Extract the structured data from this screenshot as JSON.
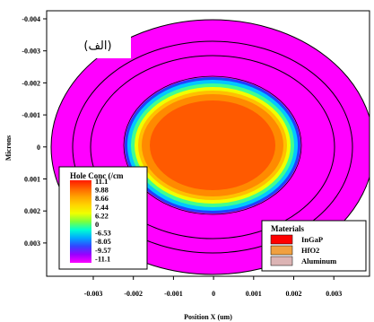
{
  "chart_data": {
    "type": "heatmap",
    "panel_label": "(الف)",
    "xlabel": "Position X (um)",
    "ylabel": "Microns",
    "x_ticks": [
      "-0.003",
      "-0.002",
      "-0.001",
      "0",
      "0.001",
      "0.002",
      "0.003"
    ],
    "y_ticks": [
      "-0.004",
      "-0.003",
      "-0.002",
      "-0.001",
      "0",
      "0.001",
      "0.002",
      "0.003"
    ],
    "colorbar": {
      "title": "Hole Conc (/cm",
      "levels": [
        "11.1",
        "9.88",
        "8.66",
        "7.44",
        "6.22",
        "0",
        "-6.53",
        "-8.05",
        "-9.57",
        "-11.1"
      ],
      "colors": [
        "#ff1a00",
        "#ff6400",
        "#ffa300",
        "#ffd400",
        "#f0ff00",
        "#7cff3c",
        "#00ffd2",
        "#00a8ff",
        "#3344ff",
        "#9a00ff",
        "#ff00ff"
      ]
    },
    "materials_legend": {
      "title": "Materials",
      "items": [
        {
          "name": "InGaP",
          "color": "#ff0000"
        },
        {
          "name": "HfO2",
          "color": "#f0a040"
        },
        {
          "name": "Aluminum",
          "color": "#dcb4b4"
        }
      ]
    }
  }
}
